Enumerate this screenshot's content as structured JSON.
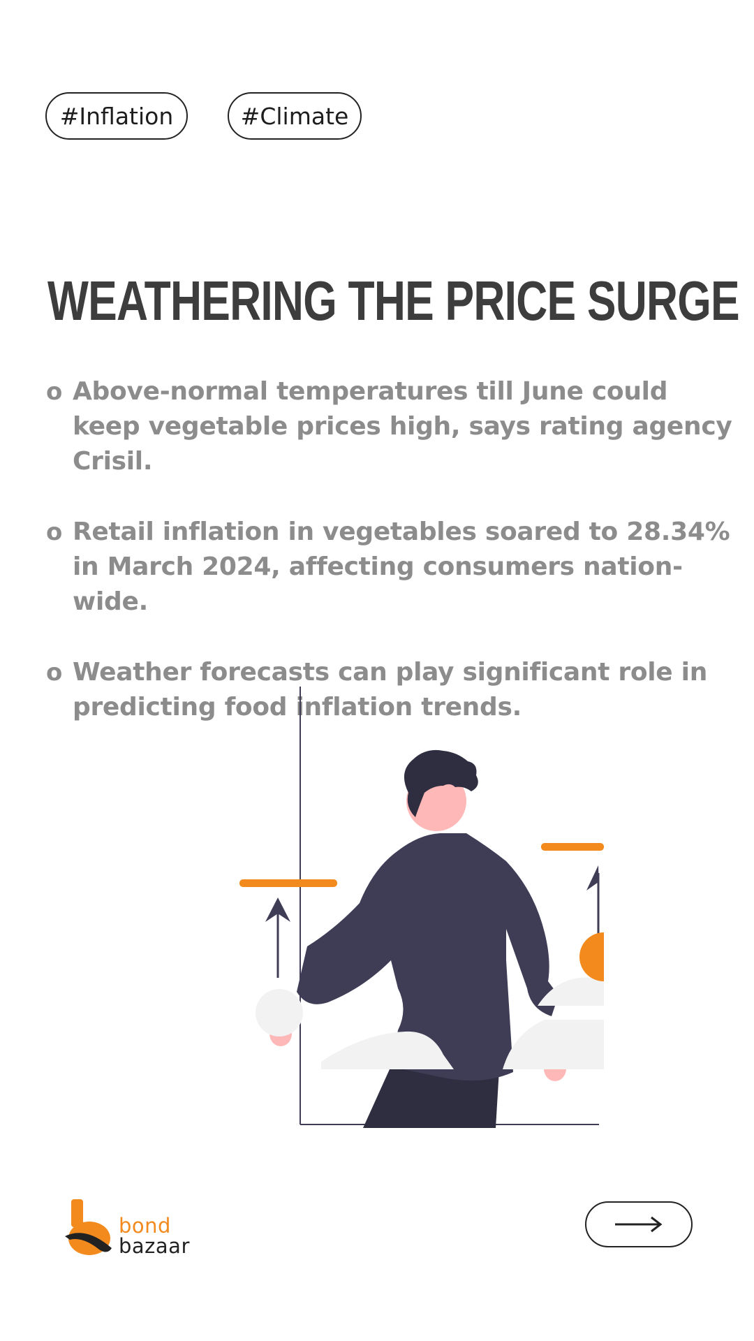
{
  "tags": [
    {
      "label": "#Inflation"
    },
    {
      "label": "#Climate"
    }
  ],
  "headline": "WEATHERING THE PRICE SURGE",
  "bullets": [
    {
      "marker": "o",
      "text": "Above-normal temperatures till June could keep vegetable prices high, says rating agency Crisil."
    },
    {
      "marker": "o",
      "text": "Retail inflation in vegetables soared to 28.34% in March 2024, affecting consumers nation-wide."
    },
    {
      "marker": "o",
      "text": "Weather forecasts can play significant role in predicting food inflation trends."
    }
  ],
  "illustration": {
    "icon": "person-with-rising-prices-illustration"
  },
  "brand": {
    "line1": "bond",
    "line2": "bazaar",
    "accent_color": "#f28a1e"
  },
  "navigation": {
    "next_icon": "arrow-right-icon"
  },
  "colors": {
    "accent": "#f28a1e",
    "headline": "#3d3d3d",
    "body_text": "#8c8c8c",
    "figure_dark": "#3f3d56",
    "skin": "#ffb8b8"
  }
}
